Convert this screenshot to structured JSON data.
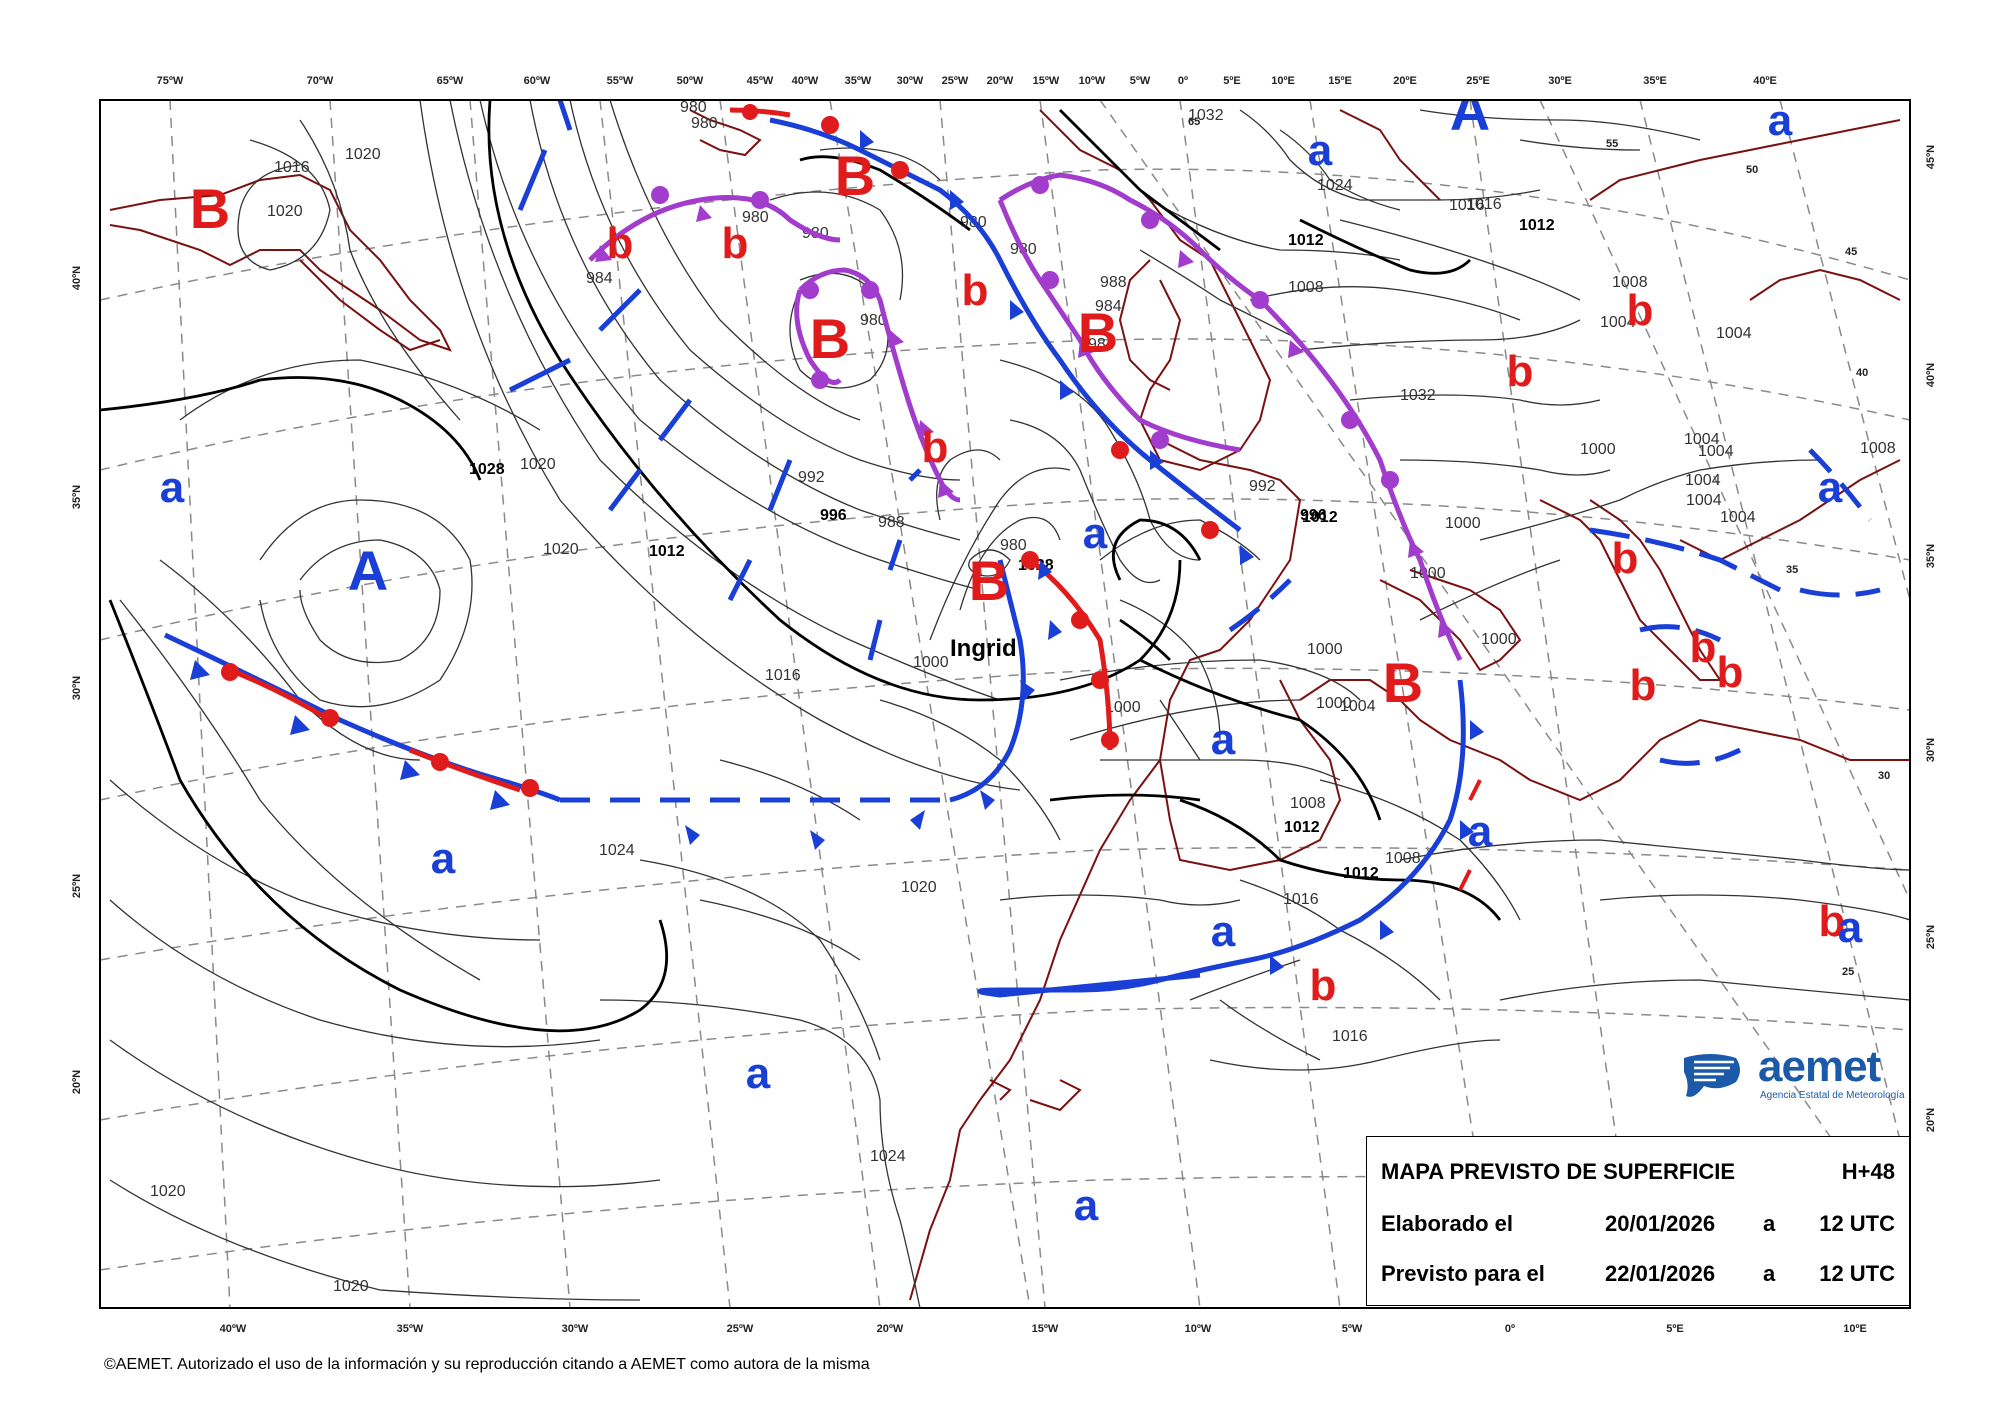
{
  "map": {
    "top_lon_labels": [
      "75ºW",
      "70ºW",
      "65ºW",
      "60ºW",
      "55ºW",
      "50ºW",
      "45ºW",
      "40ºW",
      "35ºW",
      "30ºW",
      "25ºW",
      "20ºW",
      "15ºW",
      "10ºW",
      "5ºW",
      "0º",
      "5ºE",
      "10ºE",
      "15ºE",
      "20ºE",
      "25ºE",
      "30ºE",
      "35ºE",
      "40ºE"
    ],
    "bottom_lon_labels": [
      "40ºW",
      "35ºW",
      "30ºW",
      "25ºW",
      "20ºW",
      "15ºW",
      "10ºW",
      "5ºW",
      "0º",
      "5ºE",
      "10ºE"
    ],
    "left_lat_labels": [
      "40ºN",
      "35ºN",
      "30ºN",
      "25ºN",
      "20ºN"
    ],
    "right_lat_labels": [
      "45ºN",
      "40ºN",
      "35ºN",
      "30ºN",
      "25ºN",
      "20ºN"
    ],
    "inner_lat_labels": [
      "65",
      "55",
      "50",
      "45",
      "40",
      "35",
      "30",
      "25"
    ],
    "isobar_labels": [
      "980",
      "980",
      "980",
      "980",
      "980",
      "980",
      "980",
      "980",
      "984",
      "984",
      "984",
      "988",
      "988",
      "992",
      "992",
      "996",
      "996",
      "1000",
      "1000",
      "1000",
      "1000",
      "1000",
      "1000",
      "1000",
      "1000",
      "1004",
      "1004",
      "1004",
      "1004",
      "1004",
      "1004",
      "1004",
      "1004",
      "1008",
      "1008",
      "1008",
      "1008",
      "1008",
      "1012",
      "1012",
      "1012",
      "1012",
      "1012",
      "1012",
      "1016",
      "1016",
      "1016",
      "1016",
      "1016",
      "1016",
      "1020",
      "1020",
      "1020",
      "1020",
      "1020",
      "1020",
      "1020",
      "1024",
      "1024",
      "1024",
      "1028",
      "1028",
      "1028",
      "1032",
      "1032"
    ],
    "pressure_centers": [
      {
        "label": "B",
        "kind": "low"
      },
      {
        "label": "B",
        "kind": "low"
      },
      {
        "label": "B",
        "kind": "low"
      },
      {
        "label": "B",
        "kind": "low"
      },
      {
        "label": "B",
        "kind": "low"
      },
      {
        "label": "B",
        "kind": "low"
      },
      {
        "label": "A",
        "kind": "high"
      },
      {
        "label": "A",
        "kind": "high"
      }
    ],
    "relative_labels_low": [
      "b",
      "b",
      "b",
      "b",
      "b",
      "b",
      "b",
      "b",
      "b",
      "b",
      "b",
      "b"
    ],
    "relative_labels_high": [
      "a",
      "a",
      "a",
      "a",
      "a",
      "a",
      "a",
      "a",
      "a",
      "a",
      "a",
      "a"
    ],
    "storm_name": "Ingrid",
    "colors": {
      "low": "#e01b1b",
      "high": "#1a3fd6",
      "occluded": "#a13ccc",
      "coast": "#7a1010",
      "isobar": "#333333",
      "grid": "#8a8a8a"
    }
  },
  "info": {
    "title": "MAPA PREVISTO DE SUPERFICIE",
    "range": "H+48",
    "row1_label": "Elaborado el",
    "row1_date": "20/01/2026",
    "row1_a": "a",
    "row1_time": "12 UTC",
    "row2_label": "Previsto para el",
    "row2_date": "22/01/2026",
    "row2_a": "a",
    "row2_time": "12 UTC"
  },
  "logo": {
    "name": "aemet",
    "subtitle": "Agencia Estatal de Meteorología",
    "icon": "aemet-logo-icon"
  },
  "footer": {
    "copyright": "©AEMET. Autorizado el uso de la información y su reproducción citando a AEMET como autora de la misma"
  }
}
